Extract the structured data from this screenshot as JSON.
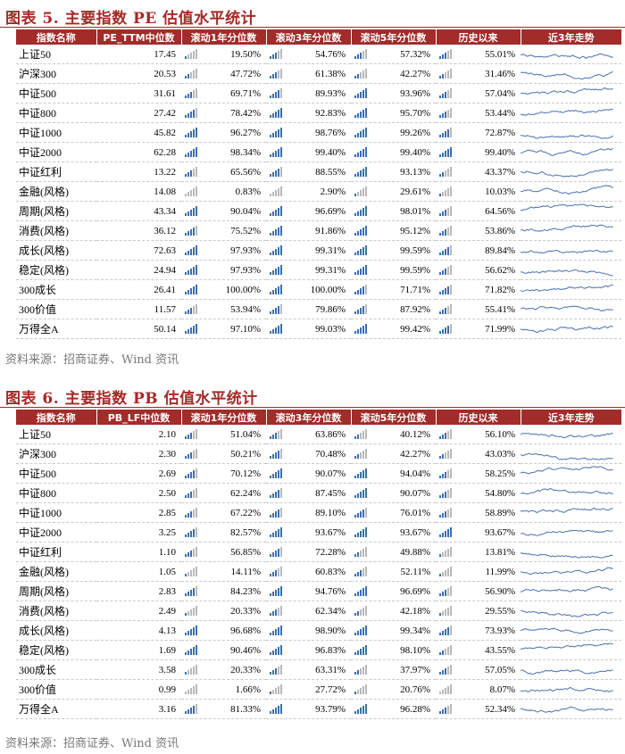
{
  "figure1": {
    "title": "图表 5. 主要指数 PE 估值水平统计",
    "headers": [
      "指数名称",
      "PE_TTM中位数",
      "滚动1年分位数",
      "滚动3年分位数",
      "滚动5年分位数",
      "历史以来",
      "近3年走势"
    ],
    "rows": [
      {
        "name": "上证50",
        "median": "17.45",
        "y1": "19.50%",
        "y3": "54.76%",
        "y5": "57.32%",
        "hist": "55.01%"
      },
      {
        "name": "沪深300",
        "median": "20.53",
        "y1": "47.72%",
        "y3": "61.38%",
        "y5": "42.27%",
        "hist": "31.46%"
      },
      {
        "name": "中证500",
        "median": "31.61",
        "y1": "69.71%",
        "y3": "89.93%",
        "y5": "93.96%",
        "hist": "57.04%"
      },
      {
        "name": "中证800",
        "median": "27.42",
        "y1": "78.42%",
        "y3": "92.83%",
        "y5": "95.70%",
        "hist": "53.44%"
      },
      {
        "name": "中证1000",
        "median": "45.82",
        "y1": "96.27%",
        "y3": "98.76%",
        "y5": "99.26%",
        "hist": "72.87%"
      },
      {
        "name": "中证2000",
        "median": "62.28",
        "y1": "98.34%",
        "y3": "99.40%",
        "y5": "99.40%",
        "hist": "99.40%"
      },
      {
        "name": "中证红利",
        "median": "13.22",
        "y1": "65.56%",
        "y3": "88.55%",
        "y5": "93.13%",
        "hist": "43.37%"
      },
      {
        "name": "金融(风格)",
        "median": "14.08",
        "y1": "0.83%",
        "y3": "2.90%",
        "y5": "29.61%",
        "hist": "10.03%"
      },
      {
        "name": "周期(风格)",
        "median": "43.34",
        "y1": "90.04%",
        "y3": "96.69%",
        "y5": "98.01%",
        "hist": "64.56%"
      },
      {
        "name": "消费(风格)",
        "median": "36.12",
        "y1": "75.52%",
        "y3": "91.86%",
        "y5": "95.12%",
        "hist": "53.86%"
      },
      {
        "name": "成长(风格)",
        "median": "72.63",
        "y1": "97.93%",
        "y3": "99.31%",
        "y5": "99.59%",
        "hist": "89.84%"
      },
      {
        "name": "稳定(风格)",
        "median": "24.94",
        "y1": "97.93%",
        "y3": "99.31%",
        "y5": "99.59%",
        "hist": "56.62%"
      },
      {
        "name": "300成长",
        "median": "26.41",
        "y1": "100.00%",
        "y3": "100.00%",
        "y5": "71.71%",
        "hist": "71.82%"
      },
      {
        "name": "300价值",
        "median": "11.57",
        "y1": "53.94%",
        "y3": "79.86%",
        "y5": "87.92%",
        "hist": "55.41%"
      },
      {
        "name": "万得全A",
        "median": "50.14",
        "y1": "97.10%",
        "y3": "99.03%",
        "y5": "99.42%",
        "hist": "71.99%"
      }
    ],
    "source": "资料来源：招商证券、Wind 资讯"
  },
  "figure2": {
    "title": "图表 6. 主要指数 PB 估值水平统计",
    "headers": [
      "指数名称",
      "PB_LF中位数",
      "滚动1年分位数",
      "滚动3年分位数",
      "滚动5年分位数",
      "历史以来",
      "近3年走势"
    ],
    "rows": [
      {
        "name": "上证50",
        "median": "2.10",
        "y1": "51.04%",
        "y3": "63.86%",
        "y5": "40.12%",
        "hist": "56.10%"
      },
      {
        "name": "沪深300",
        "median": "2.30",
        "y1": "50.21%",
        "y3": "70.48%",
        "y5": "42.27%",
        "hist": "43.03%"
      },
      {
        "name": "中证500",
        "median": "2.69",
        "y1": "70.12%",
        "y3": "90.07%",
        "y5": "94.04%",
        "hist": "58.25%"
      },
      {
        "name": "中证800",
        "median": "2.50",
        "y1": "62.24%",
        "y3": "87.45%",
        "y5": "90.07%",
        "hist": "54.80%"
      },
      {
        "name": "中证1000",
        "median": "2.85",
        "y1": "67.22%",
        "y3": "89.10%",
        "y5": "76.01%",
        "hist": "58.89%"
      },
      {
        "name": "中证2000",
        "median": "3.25",
        "y1": "82.57%",
        "y3": "93.67%",
        "y5": "93.67%",
        "hist": "93.67%"
      },
      {
        "name": "中证红利",
        "median": "1.10",
        "y1": "56.85%",
        "y3": "72.28%",
        "y5": "49.88%",
        "hist": "13.81%"
      },
      {
        "name": "金融(风格)",
        "median": "1.05",
        "y1": "14.11%",
        "y3": "60.83%",
        "y5": "52.11%",
        "hist": "11.99%"
      },
      {
        "name": "周期(风格)",
        "median": "2.83",
        "y1": "84.23%",
        "y3": "94.76%",
        "y5": "96.69%",
        "hist": "56.90%"
      },
      {
        "name": "消费(风格)",
        "median": "2.49",
        "y1": "20.33%",
        "y3": "62.34%",
        "y5": "42.18%",
        "hist": "29.55%"
      },
      {
        "name": "成长(风格)",
        "median": "4.13",
        "y1": "96.68%",
        "y3": "98.90%",
        "y5": "99.34%",
        "hist": "73.93%"
      },
      {
        "name": "稳定(风格)",
        "median": "1.69",
        "y1": "90.46%",
        "y3": "96.83%",
        "y5": "98.10%",
        "hist": "43.55%"
      },
      {
        "name": "300成长",
        "median": "3.58",
        "y1": "20.33%",
        "y3": "63.31%",
        "y5": "37.97%",
        "hist": "57.05%"
      },
      {
        "name": "300价值",
        "median": "0.99",
        "y1": "1.66%",
        "y3": "27.72%",
        "y5": "20.76%",
        "hist": "8.07%"
      },
      {
        "name": "万得全A",
        "median": "3.16",
        "y1": "81.33%",
        "y3": "93.79%",
        "y5": "96.28%",
        "hist": "52.34%"
      }
    ],
    "source": "资料来源：招商证券、Wind 资讯"
  },
  "colors": {
    "header_bg": "#a12c29",
    "title": "#a42a27",
    "bar_on": "#3b6fb1",
    "bar_off": "#b9b9b9",
    "sparkline": "#4a72b0"
  },
  "icons": {
    "percentile_bars": "signal-bars-icon",
    "trend": "sparkline-icon"
  }
}
